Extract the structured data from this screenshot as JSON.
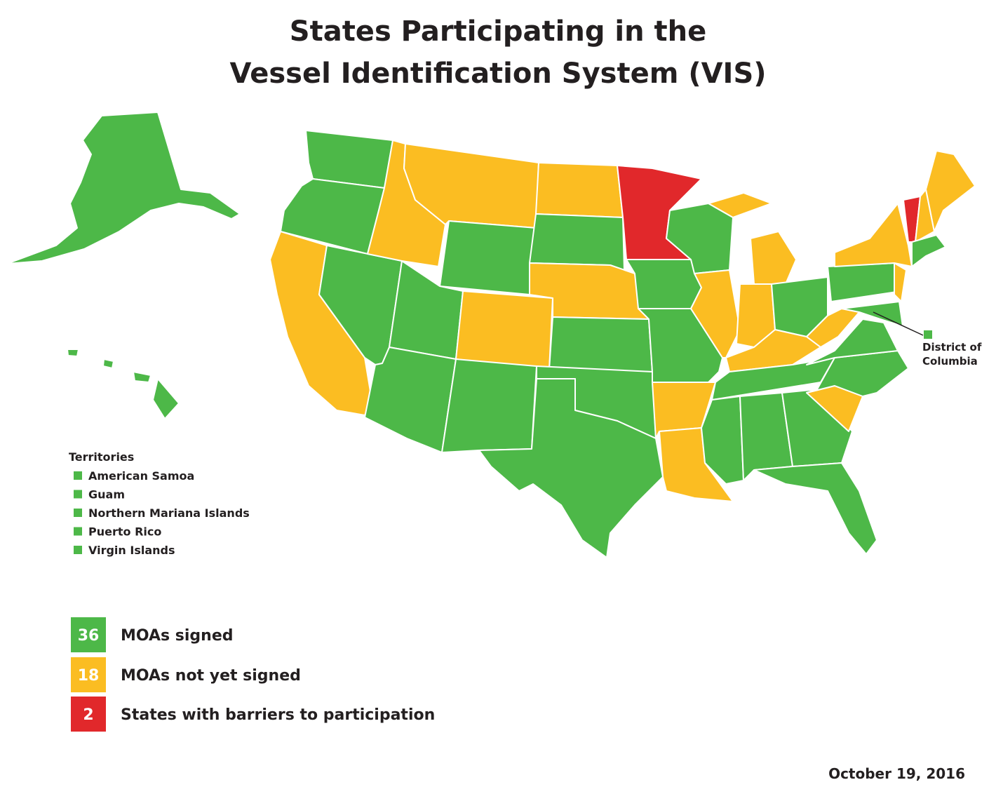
{
  "title": [
    "States Participating in the",
    "Vessel Identification System (VIS)"
  ],
  "legend": [
    {
      "count": 36,
      "label": "MOAs signed",
      "color": "#4db848"
    },
    {
      "count": 18,
      "label": "MOAs not yet signed",
      "color": "#fbbd22"
    },
    {
      "count": 2,
      "label": "States with barriers to participation",
      "color": "#e1282b"
    }
  ],
  "territories": {
    "title": "Territories",
    "items": [
      "American Samoa",
      "Guam",
      "Northern Mariana Islands",
      "Puerto Rico",
      "Virgin Islands"
    ]
  },
  "dc_label": [
    "District of",
    "Columbia"
  ],
  "date": "October 19, 2016"
}
